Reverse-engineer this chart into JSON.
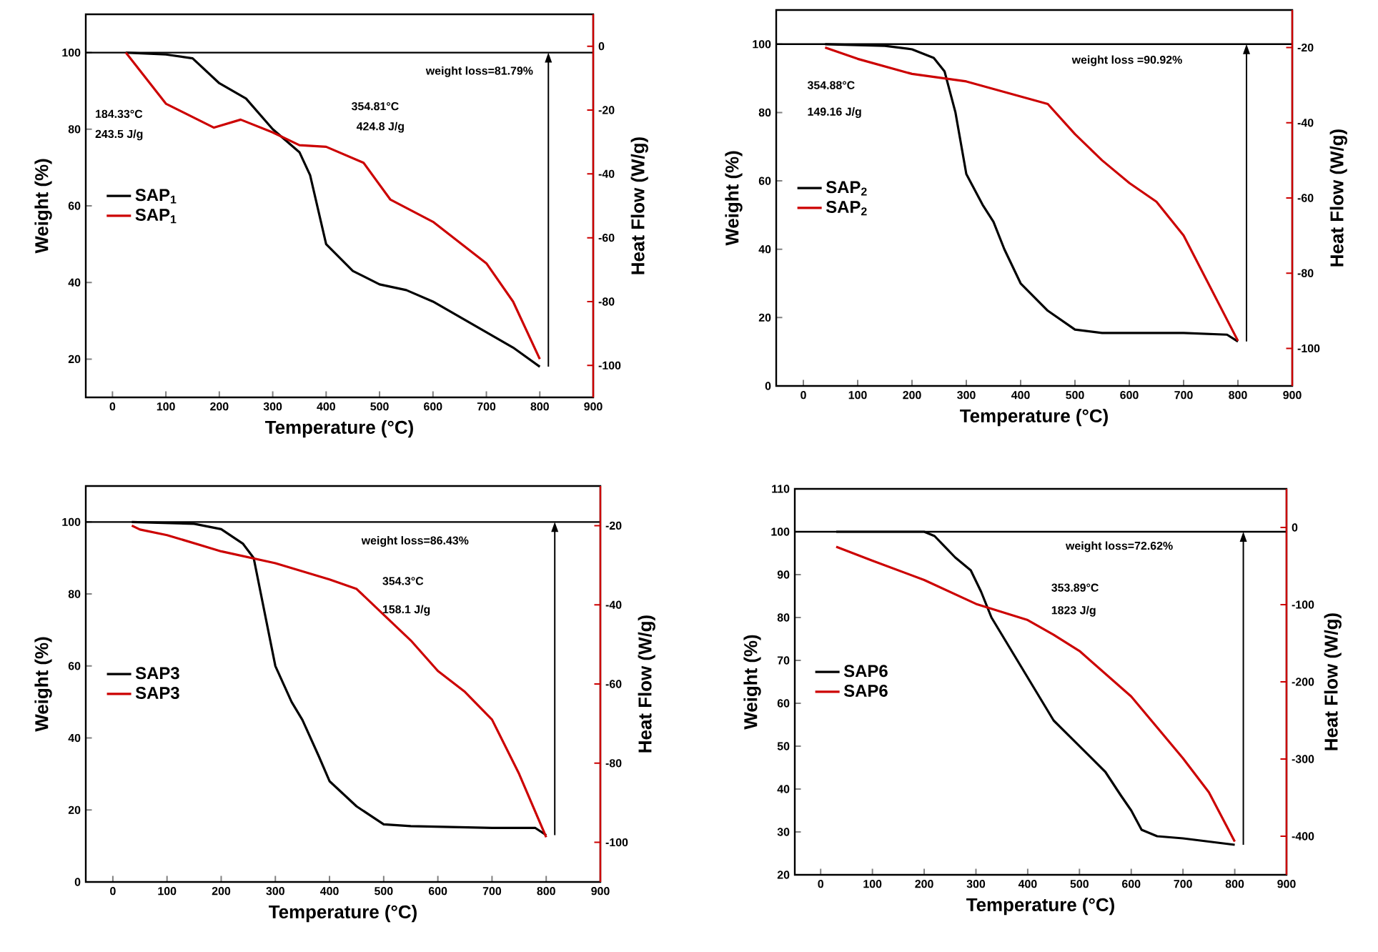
{
  "chart_data": [
    {
      "type": "line",
      "xlabel": "Temperature (°C)",
      "ylabel": "Weight (%)",
      "y2label": "Heat Flow (W/g)",
      "legend": "left",
      "xlim": [
        -50,
        900
      ],
      "xticks": [
        0,
        100,
        200,
        300,
        400,
        500,
        600,
        700,
        800,
        900
      ],
      "ylim": [
        10,
        110
      ],
      "yticks": [
        20,
        40,
        60,
        80,
        100
      ],
      "y2lim": [
        -110,
        10
      ],
      "y2ticks": [
        -100,
        -80,
        -60,
        -40,
        -20,
        0
      ],
      "ref_lines": [
        {
          "axis": "y",
          "value": 100
        }
      ],
      "annotations": [
        "weight loss=81.79%",
        "184.33°C",
        "243.5 J/g",
        "354.81°C",
        "424.8 J/g"
      ],
      "series": [
        {
          "name": "SAP$_{1}$",
          "color": "#000000",
          "x": [
            25,
            100,
            150,
            200,
            250,
            300,
            350,
            370,
            400,
            450,
            500,
            550,
            600,
            650,
            700,
            750,
            800
          ],
          "values": [
            100,
            99.5,
            98.5,
            92,
            88,
            80,
            74,
            68,
            50,
            43,
            39.5,
            38,
            35,
            31,
            27,
            23,
            18
          ]
        },
        {
          "name": "SAP$_{1}$",
          "color": "#cc0000",
          "axis": "y2",
          "x": [
            25,
            100,
            190,
            240,
            300,
            350,
            400,
            470,
            520,
            600,
            700,
            750,
            800
          ],
          "values": [
            -2,
            -18,
            -25.5,
            -23,
            -27,
            -31,
            -31.5,
            -36.5,
            -48,
            -55,
            -68,
            -80,
            -98
          ]
        }
      ]
    },
    {
      "type": "line",
      "xlabel": "Temperature (°C)",
      "ylabel": "Weight (%)",
      "y2label": "Heat Flow (W/g)",
      "legend": "left",
      "xlim": [
        -50,
        900
      ],
      "xticks": [
        0,
        100,
        200,
        300,
        400,
        500,
        600,
        700,
        800,
        900
      ],
      "ylim": [
        0,
        110
      ],
      "yticks": [
        0,
        20,
        40,
        60,
        80,
        100
      ],
      "y2lim": [
        -110,
        -10
      ],
      "y2ticks": [
        -100,
        -80,
        -60,
        -40,
        -20
      ],
      "ref_lines": [
        {
          "axis": "y",
          "value": 100
        }
      ],
      "annotations": [
        "weight loss =90.92%",
        "354.88°C",
        "149.16 J/g"
      ],
      "series": [
        {
          "name": "SAP$_{2}$",
          "color": "#000000",
          "x": [
            40,
            150,
            200,
            240,
            260,
            280,
            300,
            330,
            350,
            370,
            400,
            450,
            500,
            550,
            700,
            780,
            800
          ],
          "values": [
            100,
            99.5,
            98.5,
            96,
            92,
            80,
            62,
            53,
            48,
            40,
            30,
            22,
            16.5,
            15.5,
            15.5,
            15,
            13
          ]
        },
        {
          "name": "SAP$_{2}$",
          "color": "#cc0000",
          "axis": "y2",
          "x": [
            40,
            100,
            200,
            300,
            400,
            450,
            500,
            550,
            600,
            650,
            700,
            750,
            800
          ],
          "values": [
            -20,
            -23,
            -27,
            -29,
            -33,
            -35,
            -43,
            -50,
            -56,
            -61,
            -70,
            -84,
            -98
          ]
        }
      ]
    },
    {
      "type": "line",
      "xlabel": "Temperature (°C)",
      "ylabel": "Weight (%)",
      "y2label": "Heat Flow (W/g)",
      "legend": "left",
      "xlim": [
        -50,
        900
      ],
      "xticks": [
        0,
        100,
        200,
        300,
        400,
        500,
        600,
        700,
        800,
        900
      ],
      "ylim": [
        0,
        110
      ],
      "yticks": [
        0,
        20,
        40,
        60,
        80,
        100
      ],
      "y2lim": [
        -110,
        -10
      ],
      "y2ticks": [
        -100,
        -80,
        -60,
        -40,
        -20
      ],
      "ref_lines": [
        {
          "axis": "y",
          "value": 100
        }
      ],
      "annotations": [
        "weight loss=86.43%",
        "354.3°C",
        "158.1 J/g"
      ],
      "series": [
        {
          "name": "SAP3",
          "color": "#000000",
          "x": [
            35,
            150,
            200,
            240,
            260,
            280,
            300,
            330,
            350,
            380,
            400,
            450,
            500,
            550,
            700,
            780,
            800
          ],
          "values": [
            100,
            99.5,
            98,
            94,
            90,
            75,
            60,
            50,
            45,
            35,
            28,
            21,
            16,
            15.5,
            15,
            15,
            13
          ]
        },
        {
          "name": "SAP3",
          "color": "#cc0000",
          "axis": "y2",
          "x": [
            35,
            50,
            100,
            200,
            300,
            400,
            450,
            500,
            550,
            600,
            650,
            700,
            750,
            800
          ],
          "values": [
            -20,
            -21,
            -22.4,
            -26.5,
            -29.5,
            -33.6,
            -36,
            -42.5,
            -49,
            -56.7,
            -62,
            -69,
            -82.7,
            -98.7
          ]
        }
      ]
    },
    {
      "type": "line",
      "xlabel": "Temperature (°C)",
      "ylabel": "Weight (%)",
      "y2label": "Heat Flow (W/g)",
      "legend": "left",
      "xlim": [
        -50,
        900
      ],
      "xticks": [
        0,
        100,
        200,
        300,
        400,
        500,
        600,
        700,
        800,
        900
      ],
      "ylim": [
        20,
        110
      ],
      "yticks": [
        20,
        30,
        40,
        50,
        60,
        70,
        80,
        90,
        100,
        110
      ],
      "y2lim": [
        -450,
        50
      ],
      "y2ticks": [
        -400,
        -300,
        -200,
        -100,
        0
      ],
      "ref_lines": [
        {
          "axis": "y",
          "value": 100
        }
      ],
      "annotations": [
        "weight loss=72.62%",
        "353.89°C",
        "1823 J/g"
      ],
      "series": [
        {
          "name": "SAP6",
          "color": "#000000",
          "x": [
            30,
            200,
            220,
            260,
            290,
            310,
            330,
            360,
            400,
            450,
            500,
            550,
            580,
            600,
            620,
            650,
            700,
            800
          ],
          "values": [
            100,
            100,
            99,
            94,
            91,
            86,
            80,
            74,
            66,
            56,
            50,
            44,
            38.5,
            35,
            30.5,
            29,
            28.5,
            27
          ]
        },
        {
          "name": "SAP6",
          "color": "#cc0000",
          "axis": "y2",
          "x": [
            30,
            100,
            200,
            300,
            400,
            450,
            500,
            600,
            700,
            750,
            800
          ],
          "values": [
            -25,
            -43,
            -68,
            -99,
            -120,
            -139,
            -160,
            -219,
            -299,
            -343,
            -407
          ]
        }
      ]
    }
  ]
}
